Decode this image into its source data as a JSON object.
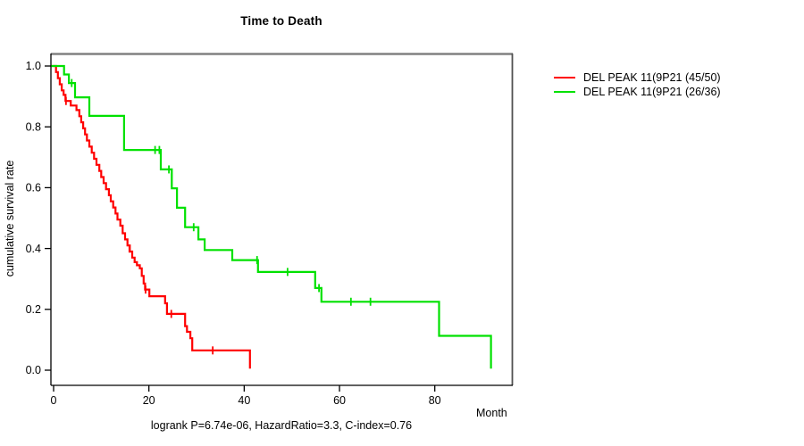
{
  "title": "Time to Death",
  "footer": "logrank P=6.74e-06, HazardRatio=3.3, C-index=0.76",
  "axes": {
    "x": {
      "label": "Month",
      "ticks": [
        0,
        20,
        40,
        60,
        80
      ]
    },
    "y": {
      "label": "cumulative survival rate",
      "ticks": [
        "0.0",
        "0.2",
        "0.4",
        "0.6",
        "0.8",
        "1.0"
      ]
    }
  },
  "legend": [
    {
      "label": "DEL PEAK 11(9P21 (45/50)",
      "color": "#ff0000"
    },
    {
      "label": "DEL PEAK 11(9P21 (26/36)",
      "color": "#00e100"
    }
  ],
  "style": {
    "box_top_color": "#808080",
    "box_side_color": "#505050",
    "axis_color": "#000000",
    "curve_width": 2.2
  },
  "chart_data": {
    "type": "line",
    "subtype": "kaplan-meier-step",
    "title": "Time to Death",
    "xlabel": "Month",
    "ylabel": "cumulative survival rate",
    "xlim": [
      0,
      96
    ],
    "ylim": [
      0.0,
      1.0
    ],
    "grid": false,
    "legend_position": "right-outside",
    "series": [
      {
        "name": "DEL PEAK 11(9P21 (45/50)",
        "color": "#ff0000",
        "steps": [
          [
            0,
            1.0
          ],
          [
            0.5,
            0.98
          ],
          [
            0.9,
            0.96
          ],
          [
            1.3,
            0.94
          ],
          [
            1.7,
            0.92
          ],
          [
            2.1,
            0.905
          ],
          [
            2.5,
            0.885
          ],
          [
            3.6,
            0.87
          ],
          [
            4.8,
            0.855
          ],
          [
            5.4,
            0.835
          ],
          [
            5.8,
            0.815
          ],
          [
            6.2,
            0.795
          ],
          [
            6.6,
            0.775
          ],
          [
            7.0,
            0.755
          ],
          [
            7.5,
            0.735
          ],
          [
            8.0,
            0.715
          ],
          [
            8.5,
            0.695
          ],
          [
            9.0,
            0.675
          ],
          [
            9.6,
            0.655
          ],
          [
            10.0,
            0.635
          ],
          [
            10.5,
            0.615
          ],
          [
            11.0,
            0.595
          ],
          [
            11.6,
            0.575
          ],
          [
            12.0,
            0.555
          ],
          [
            12.5,
            0.535
          ],
          [
            13.0,
            0.515
          ],
          [
            13.4,
            0.495
          ],
          [
            14.0,
            0.475
          ],
          [
            14.5,
            0.45
          ],
          [
            15.0,
            0.43
          ],
          [
            15.5,
            0.41
          ],
          [
            16.0,
            0.39
          ],
          [
            16.5,
            0.37
          ],
          [
            17.0,
            0.355
          ],
          [
            17.5,
            0.345
          ],
          [
            18.1,
            0.335
          ],
          [
            18.5,
            0.31
          ],
          [
            18.9,
            0.285
          ],
          [
            19.2,
            0.265
          ],
          [
            20.1,
            0.243
          ],
          [
            23.4,
            0.22
          ],
          [
            23.8,
            0.185
          ],
          [
            27.6,
            0.145
          ],
          [
            28.0,
            0.126
          ],
          [
            28.7,
            0.105
          ],
          [
            29.1,
            0.065
          ],
          [
            41.2,
            0.005
          ]
        ],
        "censor_marks": [
          [
            2.6,
            0.885
          ],
          [
            15.9,
            0.4
          ],
          [
            19.3,
            0.265
          ],
          [
            24.7,
            0.185
          ],
          [
            33.4,
            0.065
          ]
        ]
      },
      {
        "name": "DEL PEAK 11(9P21 (26/36)",
        "color": "#00e100",
        "steps": [
          [
            0,
            1.0
          ],
          [
            2.2,
            0.972
          ],
          [
            3.2,
            0.944
          ],
          [
            4.5,
            0.897
          ],
          [
            7.5,
            0.836
          ],
          [
            14.8,
            0.724
          ],
          [
            22.5,
            0.66
          ],
          [
            24.8,
            0.598
          ],
          [
            25.9,
            0.534
          ],
          [
            27.6,
            0.47
          ],
          [
            30.4,
            0.43
          ],
          [
            31.7,
            0.395
          ],
          [
            37.5,
            0.362
          ],
          [
            42.9,
            0.323
          ],
          [
            54.9,
            0.27
          ],
          [
            56.2,
            0.225
          ],
          [
            80.9,
            0.113
          ],
          [
            91.8,
            0.005
          ]
        ],
        "censor_marks": [
          [
            3.8,
            0.944
          ],
          [
            21.3,
            0.724
          ],
          [
            22.2,
            0.724
          ],
          [
            24.2,
            0.66
          ],
          [
            29.4,
            0.47
          ],
          [
            42.7,
            0.362
          ],
          [
            49.1,
            0.323
          ],
          [
            55.7,
            0.27
          ],
          [
            62.4,
            0.225
          ],
          [
            66.5,
            0.225
          ]
        ]
      }
    ]
  }
}
